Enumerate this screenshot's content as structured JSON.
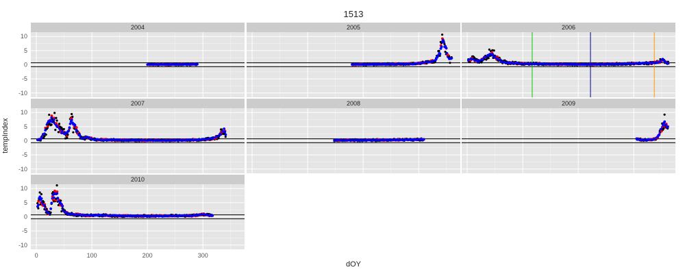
{
  "chart_data": {
    "type": "scatter",
    "title": "1513",
    "xlabel": "dOY",
    "ylabel": "tempIndex",
    "xlim": [
      -10,
      375
    ],
    "ylim": [
      -11.5,
      11.5
    ],
    "x_ticks": [
      0,
      100,
      200,
      300
    ],
    "y_ticks": [
      -10,
      -5,
      0,
      5,
      10
    ],
    "grid": true,
    "reference_lines_y": [
      -0.7,
      0.7
    ],
    "colors": {
      "black_series": "#000000",
      "red_series": "#ff0000",
      "blue_series": "#0000ff",
      "green_vline": "#00cc00",
      "navy_vline": "#000099",
      "orange_vline": "#ff9900"
    },
    "panels": [
      {
        "year": "2004",
        "segments": [
          [
            200,
            0.1
          ],
          [
            250,
            0.1
          ],
          [
            290,
            0.2
          ]
        ],
        "vlines": []
      },
      {
        "year": "2005",
        "segments": [
          [
            180,
            0.1
          ],
          [
            240,
            0.2
          ],
          [
            290,
            0.3
          ],
          [
            315,
            0.8
          ],
          [
            330,
            1.5
          ],
          [
            338,
            4
          ],
          [
            343,
            8.7
          ],
          [
            348,
            6.5
          ],
          [
            352,
            3
          ],
          [
            356,
            2.2
          ],
          [
            360,
            2.4
          ]
        ],
        "vlines": []
      },
      {
        "year": "2006",
        "segments": [
          [
            2,
            1.5
          ],
          [
            10,
            2.2
          ],
          [
            18,
            1.2
          ],
          [
            26,
            1.6
          ],
          [
            36,
            3.2
          ],
          [
            45,
            3.5
          ],
          [
            55,
            2.2
          ],
          [
            62,
            1.2
          ],
          [
            72,
            0.7
          ],
          [
            100,
            0.4
          ],
          [
            160,
            0.2
          ],
          [
            220,
            0.1
          ],
          [
            280,
            0.3
          ],
          [
            330,
            0.6
          ],
          [
            345,
            0.9
          ],
          [
            352,
            1.8
          ],
          [
            358,
            0.8
          ],
          [
            362,
            0.6
          ]
        ],
        "vlines": [
          {
            "x": 117,
            "color": "#00cc00"
          },
          {
            "x": 222,
            "color": "#000099"
          },
          {
            "x": 337,
            "color": "#ff9900"
          }
        ]
      },
      {
        "year": "2007",
        "segments": [
          [
            2,
            0.3
          ],
          [
            8,
            0.5
          ],
          [
            14,
            2.5
          ],
          [
            20,
            6.0
          ],
          [
            26,
            7.5
          ],
          [
            32,
            7.2
          ],
          [
            38,
            5.0
          ],
          [
            46,
            3.0
          ],
          [
            56,
            2.5
          ],
          [
            63,
            7.8
          ],
          [
            68,
            5.5
          ],
          [
            75,
            2.5
          ],
          [
            82,
            0.8
          ],
          [
            92,
            1.2
          ],
          [
            105,
            0.4
          ],
          [
            160,
            0.2
          ],
          [
            240,
            0.1
          ],
          [
            290,
            0.3
          ],
          [
            310,
            0.6
          ],
          [
            325,
            1.2
          ],
          [
            334,
            2.8
          ],
          [
            338,
            3.8
          ],
          [
            342,
            1.5
          ]
        ],
        "vlines": []
      },
      {
        "year": "2008",
        "segments": [
          [
            148,
            0.2
          ],
          [
            200,
            0.2
          ],
          [
            260,
            0.3
          ],
          [
            300,
            0.4
          ],
          [
            310,
            0.5
          ]
        ],
        "vlines": []
      },
      {
        "year": "2009",
        "segments": [
          [
            305,
            0.6
          ],
          [
            315,
            0.3
          ],
          [
            325,
            0.3
          ],
          [
            335,
            0.5
          ],
          [
            341,
            1.0
          ],
          [
            346,
            2.5
          ],
          [
            350,
            4.5
          ],
          [
            355,
            6.5
          ],
          [
            358,
            5.5
          ],
          [
            362,
            5.2
          ]
        ],
        "vlines": []
      },
      {
        "year": "2010",
        "segments": [
          [
            2,
            3.5
          ],
          [
            6,
            7.0
          ],
          [
            12,
            5.0
          ],
          [
            18,
            2.0
          ],
          [
            24,
            1.0
          ],
          [
            30,
            7.5
          ],
          [
            37,
            7.8
          ],
          [
            43,
            5.0
          ],
          [
            50,
            2.0
          ],
          [
            58,
            1.0
          ],
          [
            70,
            0.8
          ],
          [
            90,
            0.5
          ],
          [
            120,
            0.5
          ],
          [
            160,
            0.3
          ],
          [
            220,
            0.3
          ],
          [
            280,
            0.4
          ],
          [
            300,
            0.8
          ],
          [
            318,
            0.4
          ]
        ],
        "vlines": []
      }
    ]
  }
}
